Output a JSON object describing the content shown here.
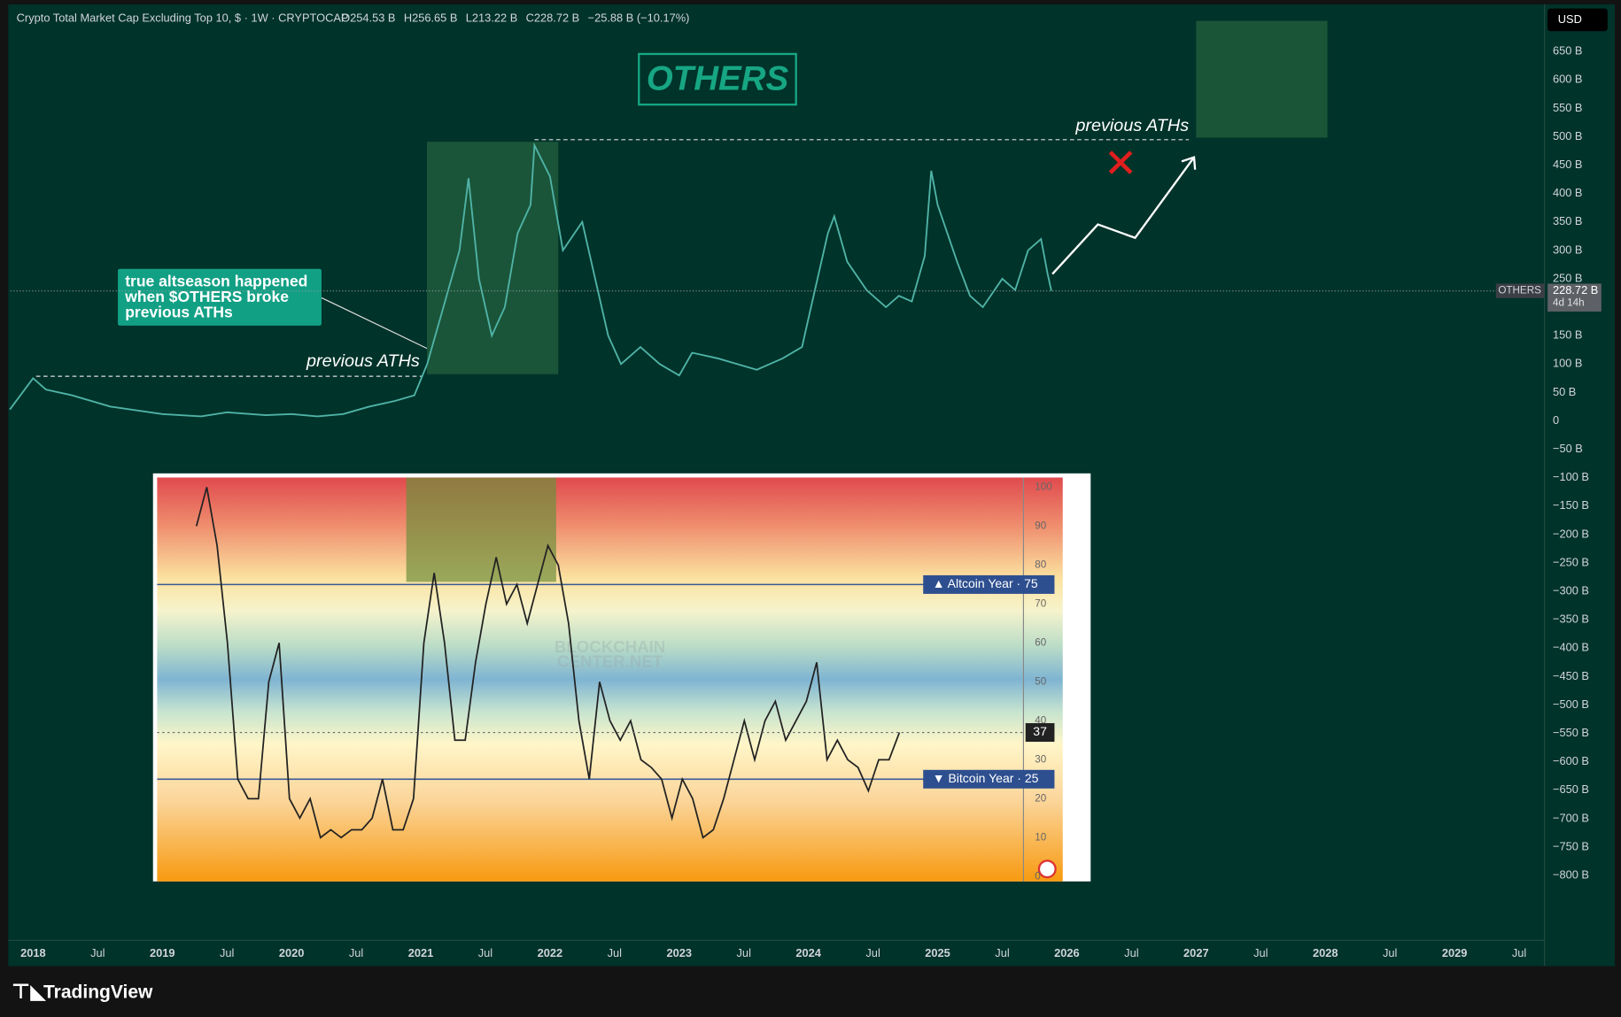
{
  "header": {
    "title": "Crypto Total Market Cap Excluding Top 10, $ · 1W · CRYPTOCAP",
    "ohlc": [
      "O254.53 B",
      "H256.65 B",
      "L213.22 B",
      "C228.72 B",
      "−25.88 B (−10.17%)"
    ],
    "currency": "USD"
  },
  "footer": {
    "brand": "TradingView"
  },
  "chart_data": [
    {
      "type": "line",
      "title": "OTHERS",
      "xlim": [
        2017.824,
        2029.696
      ],
      "ylim": [
        -905,
        722
      ],
      "xticks": [
        2018,
        {
          "value": 2018.5,
          "label": "Jul"
        },
        2019,
        {
          "value": 2019.5,
          "label": "Jul"
        },
        2020,
        {
          "value": 2020.5,
          "label": "Jul"
        },
        2021,
        {
          "value": 2021.5,
          "label": "Jul"
        },
        2022,
        {
          "value": 2022.5,
          "label": "Jul"
        },
        2023,
        {
          "value": 2023.5,
          "label": "Jul"
        },
        2024,
        {
          "value": 2024.5,
          "label": "Jul"
        },
        2025,
        {
          "value": 2025.5,
          "label": "Jul"
        },
        2026,
        {
          "value": 2026.5,
          "label": "Jul"
        },
        2027,
        {
          "value": 2027.5,
          "label": "Jul"
        },
        2028,
        {
          "value": 2028.5,
          "label": "Jul"
        },
        2029,
        {
          "value": 2029.5,
          "label": "Jul"
        }
      ],
      "yticks": [
        {
          "value": 650,
          "label": "650 B"
        },
        {
          "value": 600,
          "label": "600 B"
        },
        {
          "value": 550,
          "label": "550 B"
        },
        {
          "value": 500,
          "label": "500 B"
        },
        {
          "value": 450,
          "label": "450 B"
        },
        {
          "value": 400,
          "label": "400 B"
        },
        {
          "value": 350,
          "label": "350 B"
        },
        {
          "value": 300,
          "label": "300 B"
        },
        {
          "value": 250,
          "label": "250 B"
        },
        {
          "value": 150,
          "label": "150 B"
        },
        {
          "value": 100,
          "label": "100 B"
        },
        {
          "value": 50,
          "label": "50 B"
        },
        0,
        {
          "value": -50,
          "label": "−50 B"
        },
        {
          "value": -100,
          "label": "−100 B"
        },
        {
          "value": -150,
          "label": "−150 B"
        },
        {
          "value": -200,
          "label": "−200 B"
        },
        {
          "value": -250,
          "label": "−250 B"
        },
        {
          "value": -300,
          "label": "−300 B"
        },
        {
          "value": -350,
          "label": "−350 B"
        },
        {
          "value": -400,
          "label": "−400 B"
        },
        {
          "value": -450,
          "label": "−450 B"
        },
        {
          "value": -500,
          "label": "−500 B"
        },
        {
          "value": -550,
          "label": "−550 B"
        },
        {
          "value": -600,
          "label": "−600 B"
        },
        {
          "value": -650,
          "label": "−650 B"
        },
        {
          "value": -700,
          "label": "−700 B"
        },
        {
          "value": -750,
          "label": "−750 B"
        },
        {
          "value": -800,
          "label": "−800 B"
        }
      ],
      "grid": false,
      "series": [
        {
          "name": "OTHERS",
          "color": "#4fb3a6",
          "x": [
            2017.82,
            2018.0,
            2018.1,
            2018.3,
            2018.6,
            2019.0,
            2019.3,
            2019.5,
            2019.8,
            2020.0,
            2020.2,
            2020.4,
            2020.6,
            2020.8,
            2020.95,
            2021.05,
            2021.15,
            2021.3,
            2021.37,
            2021.45,
            2021.55,
            2021.65,
            2021.75,
            2021.85,
            2021.88,
            2022.0,
            2022.1,
            2022.25,
            2022.35,
            2022.45,
            2022.55,
            2022.7,
            2022.85,
            2023.0,
            2023.1,
            2023.3,
            2023.45,
            2023.6,
            2023.8,
            2023.95,
            2024.0,
            2024.15,
            2024.2,
            2024.3,
            2024.45,
            2024.6,
            2024.7,
            2024.8,
            2024.9,
            2024.95,
            2025.0,
            2025.15,
            2025.25,
            2025.35,
            2025.5,
            2025.6,
            2025.7,
            2025.8,
            2025.85,
            2025.88
          ],
          "values": [
            20,
            75,
            55,
            45,
            25,
            12,
            8,
            15,
            10,
            12,
            8,
            12,
            25,
            35,
            45,
            100,
            180,
            300,
            427,
            250,
            150,
            200,
            330,
            380,
            485,
            430,
            300,
            350,
            250,
            150,
            100,
            130,
            100,
            80,
            120,
            110,
            100,
            90,
            110,
            130,
            180,
            330,
            360,
            280,
            230,
            200,
            220,
            210,
            290,
            440,
            380,
            280,
            220,
            200,
            250,
            230,
            300,
            320,
            260,
            228.72
          ]
        }
      ],
      "last_value_label": "228.72 B",
      "countdown": "4d 14h",
      "annotations": {
        "previous_aths": [
          "previous ATHs",
          "previous ATHs"
        ],
        "callout": [
          "true altseason happened",
          "when $OTHERS broke",
          "previous ATHs"
        ]
      }
    },
    {
      "type": "line",
      "ylim": [
        -1,
        102.5
      ],
      "yticks": [
        0,
        10,
        20,
        30,
        40,
        50,
        60,
        70,
        80,
        90,
        100
      ],
      "color": "#222222",
      "values": [
        90,
        100,
        85,
        60,
        25,
        20,
        20,
        50,
        60,
        20,
        15,
        20,
        10,
        12,
        10,
        12,
        12,
        15,
        25,
        12,
        12,
        20,
        60,
        78,
        60,
        35,
        35,
        55,
        70,
        82,
        70,
        75,
        65,
        75,
        85,
        80,
        65,
        40,
        25,
        50,
        40,
        35,
        40,
        30,
        28,
        25,
        15,
        25,
        20,
        10,
        12,
        20,
        30,
        40,
        30,
        40,
        45,
        35,
        40,
        45,
        55,
        30,
        35,
        30,
        28,
        22,
        30,
        30,
        37
      ],
      "reference_lines": [
        {
          "value": 75,
          "label": "▲ Altcoin Year · 75"
        },
        {
          "value": 25,
          "label": "▼ Bitcoin Year · 25"
        }
      ],
      "current_value": 37,
      "watermark": [
        "BLOCKCHAIN",
        "CENTER.NET"
      ]
    }
  ]
}
